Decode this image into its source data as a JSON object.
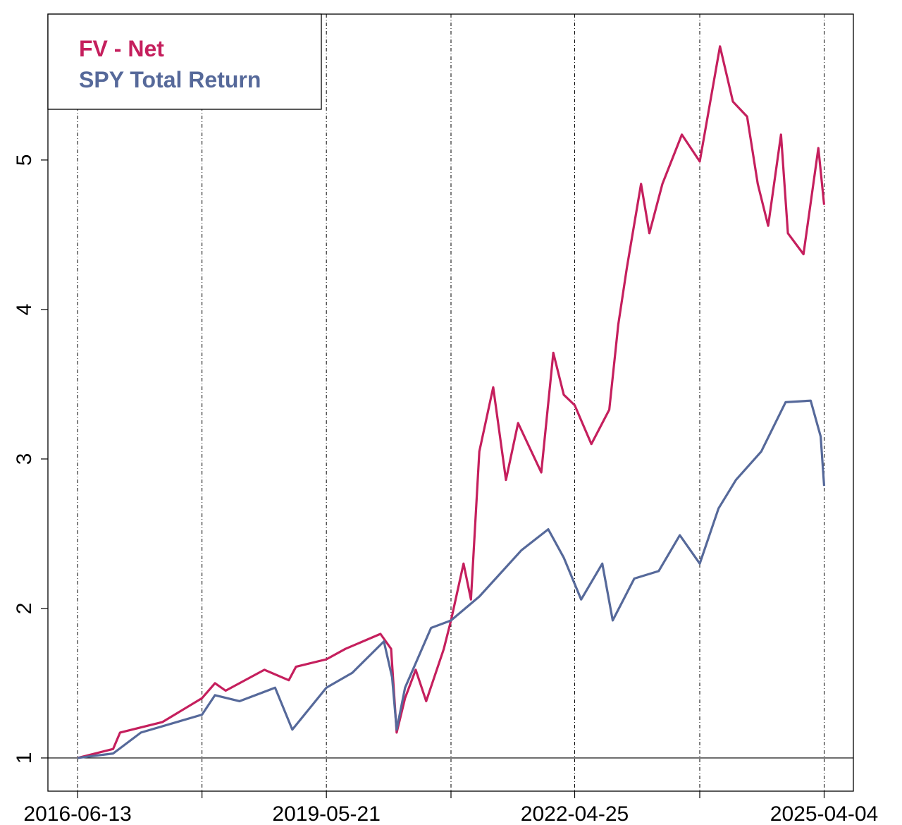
{
  "chart_data": {
    "type": "line",
    "title": "",
    "xlabel": "",
    "ylabel": "",
    "x_type": "date",
    "xlim": [
      "2016-02-06",
      "2025-08-08"
    ],
    "ylim": [
      0.778,
      5.976
    ],
    "yticks": [
      1,
      2,
      3,
      4,
      5
    ],
    "xticks": [
      "2016-06-13",
      "2017-12-01",
      "2019-05-21",
      "2020-11-08",
      "2022-04-25",
      "2023-10-16",
      "2025-04-04"
    ],
    "xtick_labels": [
      "2016-06-13",
      "",
      "2019-05-21",
      "",
      "2022-04-25",
      "",
      "2025-04-04"
    ],
    "vertical_grid": "dashed at x ticks",
    "reference_line_y": 1,
    "legend_placement": "top-left",
    "series": [
      {
        "name": "FV - Net",
        "color": "#C51F5D",
        "points": [
          [
            "2016-06-13",
            1.0
          ],
          [
            "2016-11-13",
            1.06
          ],
          [
            "2016-12-13",
            1.17
          ],
          [
            "2017-06-13",
            1.24
          ],
          [
            "2017-12-01",
            1.4
          ],
          [
            "2018-01-26",
            1.5
          ],
          [
            "2018-03-13",
            1.45
          ],
          [
            "2018-08-27",
            1.59
          ],
          [
            "2018-12-10",
            1.52
          ],
          [
            "2019-01-10",
            1.61
          ],
          [
            "2019-05-21",
            1.66
          ],
          [
            "2019-08-11",
            1.73
          ],
          [
            "2020-01-09",
            1.83
          ],
          [
            "2020-02-24",
            1.73
          ],
          [
            "2020-03-19",
            1.17
          ],
          [
            "2020-04-24",
            1.4
          ],
          [
            "2020-06-09",
            1.59
          ],
          [
            "2020-07-24",
            1.38
          ],
          [
            "2020-10-08",
            1.73
          ],
          [
            "2020-11-08",
            1.92
          ],
          [
            "2021-01-01",
            2.3
          ],
          [
            "2021-02-02",
            2.06
          ],
          [
            "2021-03-10",
            3.05
          ],
          [
            "2021-05-09",
            3.48
          ],
          [
            "2021-07-03",
            2.86
          ],
          [
            "2021-08-24",
            3.24
          ],
          [
            "2021-12-02",
            2.91
          ],
          [
            "2022-01-23",
            3.71
          ],
          [
            "2022-03-09",
            3.43
          ],
          [
            "2022-04-25",
            3.36
          ],
          [
            "2022-07-06",
            3.1
          ],
          [
            "2022-09-21",
            3.33
          ],
          [
            "2022-10-30",
            3.9
          ],
          [
            "2022-12-06",
            4.28
          ],
          [
            "2023-02-05",
            4.84
          ],
          [
            "2023-03-13",
            4.51
          ],
          [
            "2023-05-08",
            4.84
          ],
          [
            "2023-07-31",
            5.17
          ],
          [
            "2023-10-16",
            4.99
          ],
          [
            "2024-01-11",
            5.76
          ],
          [
            "2024-03-07",
            5.39
          ],
          [
            "2024-05-07",
            5.29
          ],
          [
            "2024-06-22",
            4.84
          ],
          [
            "2024-08-06",
            4.56
          ],
          [
            "2024-09-30",
            5.17
          ],
          [
            "2024-10-30",
            4.51
          ],
          [
            "2025-01-05",
            4.37
          ],
          [
            "2025-03-10",
            5.08
          ],
          [
            "2025-04-04",
            4.7
          ]
        ]
      },
      {
        "name": "SPY Total Return",
        "color": "#56699A",
        "points": [
          [
            "2016-06-13",
            1.0
          ],
          [
            "2016-11-13",
            1.03
          ],
          [
            "2017-03-13",
            1.17
          ],
          [
            "2017-12-01",
            1.29
          ],
          [
            "2018-01-26",
            1.42
          ],
          [
            "2018-05-12",
            1.38
          ],
          [
            "2018-10-12",
            1.47
          ],
          [
            "2018-12-25",
            1.19
          ],
          [
            "2019-05-21",
            1.47
          ],
          [
            "2019-09-10",
            1.57
          ],
          [
            "2020-01-24",
            1.78
          ],
          [
            "2020-02-28",
            1.54
          ],
          [
            "2020-03-19",
            1.19
          ],
          [
            "2020-04-24",
            1.47
          ],
          [
            "2020-08-14",
            1.87
          ],
          [
            "2020-11-08",
            1.92
          ],
          [
            "2021-03-10",
            2.08
          ],
          [
            "2021-09-08",
            2.39
          ],
          [
            "2022-01-01",
            2.53
          ],
          [
            "2022-03-09",
            2.34
          ],
          [
            "2022-05-23",
            2.06
          ],
          [
            "2022-08-22",
            2.3
          ],
          [
            "2022-10-06",
            1.92
          ],
          [
            "2023-01-07",
            2.2
          ],
          [
            "2023-04-22",
            2.25
          ],
          [
            "2023-07-22",
            2.49
          ],
          [
            "2023-10-16",
            2.3
          ],
          [
            "2024-01-05",
            2.67
          ],
          [
            "2024-03-20",
            2.86
          ],
          [
            "2024-07-07",
            3.05
          ],
          [
            "2024-10-20",
            3.38
          ],
          [
            "2025-02-05",
            3.39
          ],
          [
            "2025-03-20",
            3.15
          ],
          [
            "2025-04-04",
            2.82
          ]
        ]
      }
    ]
  }
}
